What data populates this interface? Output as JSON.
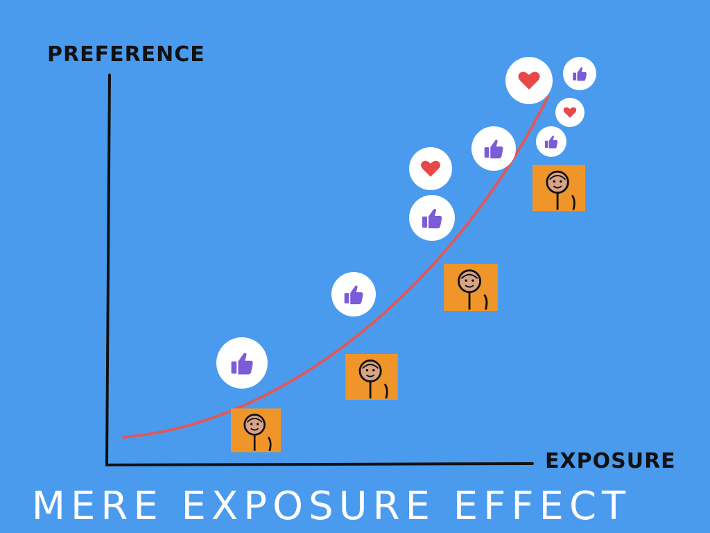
{
  "y_axis_label": "PREFERENCE",
  "x_axis_label": "EXPOSURE",
  "title": "MERE EXPOSURE EFFECT"
}
